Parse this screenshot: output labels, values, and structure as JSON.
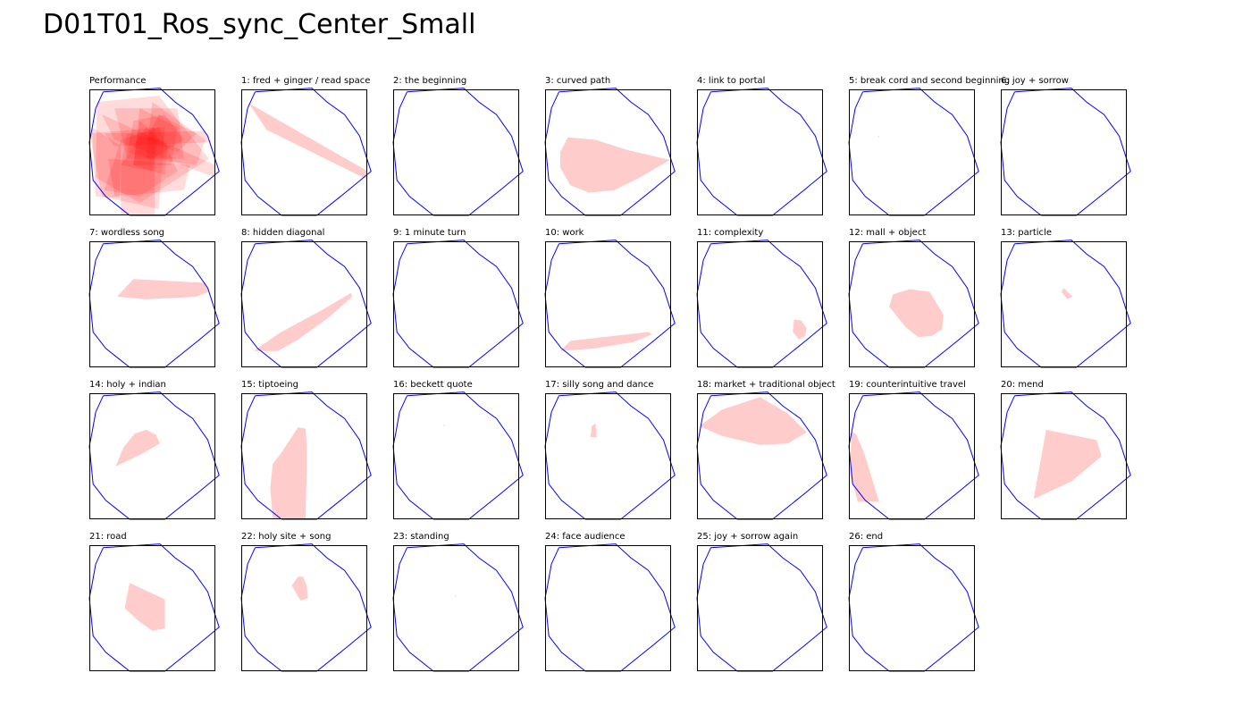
{
  "title": "D01T01_Ros_sync_Center_Small",
  "colors": {
    "boundary": "#0000ff",
    "fill": "#ff0000",
    "frame": "#000000"
  },
  "boundary_polygon": [
    [
      0.11,
      0.02
    ],
    [
      0.56,
      -0.01
    ],
    [
      0.68,
      0.1
    ],
    [
      0.82,
      0.2
    ],
    [
      0.94,
      0.37
    ],
    [
      1.03,
      0.65
    ],
    [
      0.85,
      0.8
    ],
    [
      0.6,
      1.0
    ],
    [
      0.32,
      1.0
    ],
    [
      0.13,
      0.85
    ],
    [
      0.03,
      0.72
    ],
    [
      0.0,
      0.42
    ],
    [
      0.02,
      0.32
    ],
    [
      0.05,
      0.15
    ],
    [
      0.11,
      0.02
    ]
  ],
  "panels": [
    {
      "title": "Performance",
      "shapes": []
    },
    {
      "title": "1: fred + ginger / read space",
      "shapes": [
        [
          [
            0.06,
            0.11
          ],
          [
            1.04,
            0.67
          ],
          [
            1.01,
            0.72
          ],
          [
            0.2,
            0.32
          ]
        ]
      ]
    },
    {
      "title": "2: the beginning",
      "shapes": []
    },
    {
      "title": "3: curved path",
      "shapes": [
        [
          [
            0.18,
            0.38
          ],
          [
            0.4,
            0.4
          ],
          [
            0.65,
            0.48
          ],
          [
            0.99,
            0.56
          ],
          [
            0.75,
            0.7
          ],
          [
            0.55,
            0.8
          ],
          [
            0.35,
            0.82
          ],
          [
            0.2,
            0.76
          ],
          [
            0.12,
            0.62
          ],
          [
            0.12,
            0.5
          ]
        ]
      ]
    },
    {
      "title": "4: link to portal",
      "shapes": []
    },
    {
      "title": "5: break cord and second beginning",
      "shapes": [
        [
          [
            0.23,
            0.37
          ],
          [
            0.24,
            0.37
          ],
          [
            0.24,
            0.38
          ],
          [
            0.23,
            0.38
          ]
        ]
      ]
    },
    {
      "title": "6: joy + sorrow",
      "shapes": []
    },
    {
      "title": "7: wordless song",
      "shapes": [
        [
          [
            0.35,
            0.3
          ],
          [
            0.92,
            0.33
          ],
          [
            0.95,
            0.4
          ],
          [
            0.85,
            0.44
          ],
          [
            0.45,
            0.46
          ],
          [
            0.22,
            0.44
          ]
        ]
      ]
    },
    {
      "title": "8: hidden diagonal",
      "shapes": [
        [
          [
            0.87,
            0.41
          ],
          [
            0.88,
            0.44
          ],
          [
            0.7,
            0.6
          ],
          [
            0.45,
            0.78
          ],
          [
            0.29,
            0.87
          ],
          [
            0.1,
            0.87
          ],
          [
            0.3,
            0.73
          ],
          [
            0.65,
            0.54
          ]
        ]
      ]
    },
    {
      "title": "9: 1 minute turn",
      "shapes": []
    },
    {
      "title": "10: work",
      "shapes": [
        [
          [
            0.2,
            0.79
          ],
          [
            0.82,
            0.72
          ],
          [
            0.85,
            0.74
          ],
          [
            0.7,
            0.8
          ],
          [
            0.4,
            0.85
          ],
          [
            0.12,
            0.87
          ]
        ]
      ]
    },
    {
      "title": "11: complexity",
      "shapes": [
        [
          [
            0.77,
            0.62
          ],
          [
            0.83,
            0.63
          ],
          [
            0.87,
            0.69
          ],
          [
            0.86,
            0.75
          ],
          [
            0.81,
            0.78
          ],
          [
            0.76,
            0.72
          ]
        ]
      ]
    },
    {
      "title": "12: mall + object",
      "shapes": [
        [
          [
            0.35,
            0.42
          ],
          [
            0.48,
            0.38
          ],
          [
            0.64,
            0.4
          ],
          [
            0.75,
            0.58
          ],
          [
            0.74,
            0.7
          ],
          [
            0.66,
            0.75
          ],
          [
            0.55,
            0.76
          ],
          [
            0.45,
            0.68
          ],
          [
            0.32,
            0.52
          ]
        ]
      ]
    },
    {
      "title": "13: particle",
      "shapes": [
        [
          [
            0.5,
            0.37
          ],
          [
            0.57,
            0.44
          ],
          [
            0.53,
            0.46
          ],
          [
            0.48,
            0.4
          ]
        ]
      ]
    },
    {
      "title": "14: holy + indian",
      "shapes": [
        [
          [
            0.27,
            0.43
          ],
          [
            0.36,
            0.32
          ],
          [
            0.45,
            0.29
          ],
          [
            0.53,
            0.33
          ],
          [
            0.56,
            0.4
          ],
          [
            0.4,
            0.49
          ],
          [
            0.21,
            0.58
          ]
        ]
      ]
    },
    {
      "title": "15: tiptoeing",
      "shapes": [
        [
          [
            0.45,
            0.27
          ],
          [
            0.51,
            0.28
          ],
          [
            0.52,
            0.4
          ],
          [
            0.52,
            0.6
          ],
          [
            0.51,
            1.0
          ],
          [
            0.25,
            1.0
          ],
          [
            0.23,
            0.75
          ],
          [
            0.25,
            0.56
          ],
          [
            0.32,
            0.47
          ]
        ]
      ]
    },
    {
      "title": "16: beckett quote",
      "shapes": [
        [
          [
            0.4,
            0.25
          ],
          [
            0.41,
            0.25
          ],
          [
            0.41,
            0.26
          ],
          [
            0.4,
            0.26
          ]
        ]
      ]
    },
    {
      "title": "17: silly song and dance",
      "shapes": [
        [
          [
            0.37,
            0.26
          ],
          [
            0.4,
            0.24
          ],
          [
            0.41,
            0.35
          ],
          [
            0.36,
            0.35
          ]
        ]
      ]
    },
    {
      "title": "18: market + traditional object",
      "shapes": [
        [
          [
            0.02,
            0.26
          ],
          [
            0.2,
            0.13
          ],
          [
            0.5,
            0.03
          ],
          [
            0.72,
            0.16
          ],
          [
            0.87,
            0.31
          ],
          [
            0.72,
            0.4
          ],
          [
            0.5,
            0.41
          ],
          [
            0.2,
            0.34
          ]
        ]
      ]
    },
    {
      "title": "19: counterintuitive travel",
      "shapes": [
        [
          [
            0.02,
            0.3
          ],
          [
            0.06,
            0.33
          ],
          [
            0.12,
            0.47
          ],
          [
            0.24,
            0.86
          ],
          [
            0.07,
            0.86
          ],
          [
            0.01,
            0.64
          ]
        ]
      ]
    },
    {
      "title": "20: mend",
      "shapes": [
        [
          [
            0.36,
            0.29
          ],
          [
            0.76,
            0.37
          ],
          [
            0.8,
            0.5
          ],
          [
            0.56,
            0.7
          ],
          [
            0.26,
            0.84
          ]
        ]
      ]
    },
    {
      "title": "21: road",
      "shapes": [
        [
          [
            0.32,
            0.3
          ],
          [
            0.6,
            0.43
          ],
          [
            0.6,
            0.66
          ],
          [
            0.5,
            0.68
          ],
          [
            0.39,
            0.6
          ],
          [
            0.28,
            0.5
          ]
        ]
      ]
    },
    {
      "title": "22: holy site + song",
      "shapes": [
        [
          [
            0.45,
            0.25
          ],
          [
            0.49,
            0.25
          ],
          [
            0.52,
            0.32
          ],
          [
            0.53,
            0.42
          ],
          [
            0.47,
            0.44
          ],
          [
            0.4,
            0.32
          ]
        ]
      ]
    },
    {
      "title": "23: standing",
      "shapes": [
        [
          [
            0.49,
            0.4
          ],
          [
            0.5,
            0.4
          ],
          [
            0.5,
            0.41
          ],
          [
            0.49,
            0.41
          ]
        ]
      ]
    },
    {
      "title": "24: face audience",
      "shapes": []
    },
    {
      "title": "25: joy + sorrow again",
      "shapes": []
    },
    {
      "title": "26: end",
      "shapes": []
    }
  ],
  "performance_overlay": [
    [
      [
        0.06,
        0.1
      ],
      [
        0.55,
        0.05
      ],
      [
        0.95,
        0.55
      ],
      [
        0.4,
        0.9
      ],
      [
        0.05,
        0.7
      ]
    ],
    [
      [
        0.1,
        0.2
      ],
      [
        1.04,
        0.62
      ],
      [
        1.0,
        0.7
      ],
      [
        0.2,
        0.4
      ]
    ],
    [
      [
        0.12,
        0.35
      ],
      [
        0.92,
        0.33
      ],
      [
        0.95,
        0.42
      ],
      [
        0.2,
        0.45
      ]
    ],
    [
      [
        0.25,
        0.4
      ],
      [
        0.55,
        0.3
      ],
      [
        0.7,
        0.65
      ],
      [
        0.4,
        0.85
      ],
      [
        0.12,
        0.8
      ]
    ],
    [
      [
        0.35,
        0.25
      ],
      [
        0.6,
        0.2
      ],
      [
        0.75,
        0.4
      ],
      [
        0.5,
        0.55
      ],
      [
        0.3,
        0.5
      ]
    ],
    [
      [
        0.4,
        0.15
      ],
      [
        0.7,
        0.3
      ],
      [
        0.65,
        0.6
      ],
      [
        0.35,
        0.6
      ]
    ],
    [
      [
        0.45,
        0.3
      ],
      [
        0.52,
        0.3
      ],
      [
        0.52,
        1.0
      ],
      [
        0.25,
        1.0
      ],
      [
        0.25,
        0.6
      ]
    ],
    [
      [
        0.0,
        0.35
      ],
      [
        0.6,
        0.3
      ],
      [
        0.55,
        0.95
      ],
      [
        0.1,
        0.85
      ]
    ],
    [
      [
        0.5,
        0.1
      ],
      [
        0.92,
        0.4
      ],
      [
        0.85,
        0.6
      ],
      [
        0.45,
        0.55
      ]
    ],
    [
      [
        0.15,
        0.55
      ],
      [
        0.8,
        0.6
      ],
      [
        0.75,
        0.8
      ],
      [
        0.2,
        0.85
      ]
    ],
    [
      [
        0.55,
        0.2
      ],
      [
        0.85,
        0.35
      ],
      [
        0.7,
        0.5
      ],
      [
        0.45,
        0.4
      ]
    ],
    [
      [
        0.3,
        0.35
      ],
      [
        0.55,
        0.4
      ],
      [
        0.5,
        0.65
      ],
      [
        0.25,
        0.6
      ]
    ],
    [
      [
        0.4,
        0.25
      ],
      [
        0.62,
        0.45
      ],
      [
        0.6,
        0.68
      ],
      [
        0.35,
        0.6
      ]
    ],
    [
      [
        0.02,
        0.3
      ],
      [
        0.25,
        0.45
      ],
      [
        0.24,
        0.86
      ],
      [
        0.05,
        0.85
      ]
    ],
    [
      [
        0.2,
        0.15
      ],
      [
        0.7,
        0.15
      ],
      [
        0.75,
        0.55
      ],
      [
        0.3,
        0.55
      ]
    ]
  ]
}
